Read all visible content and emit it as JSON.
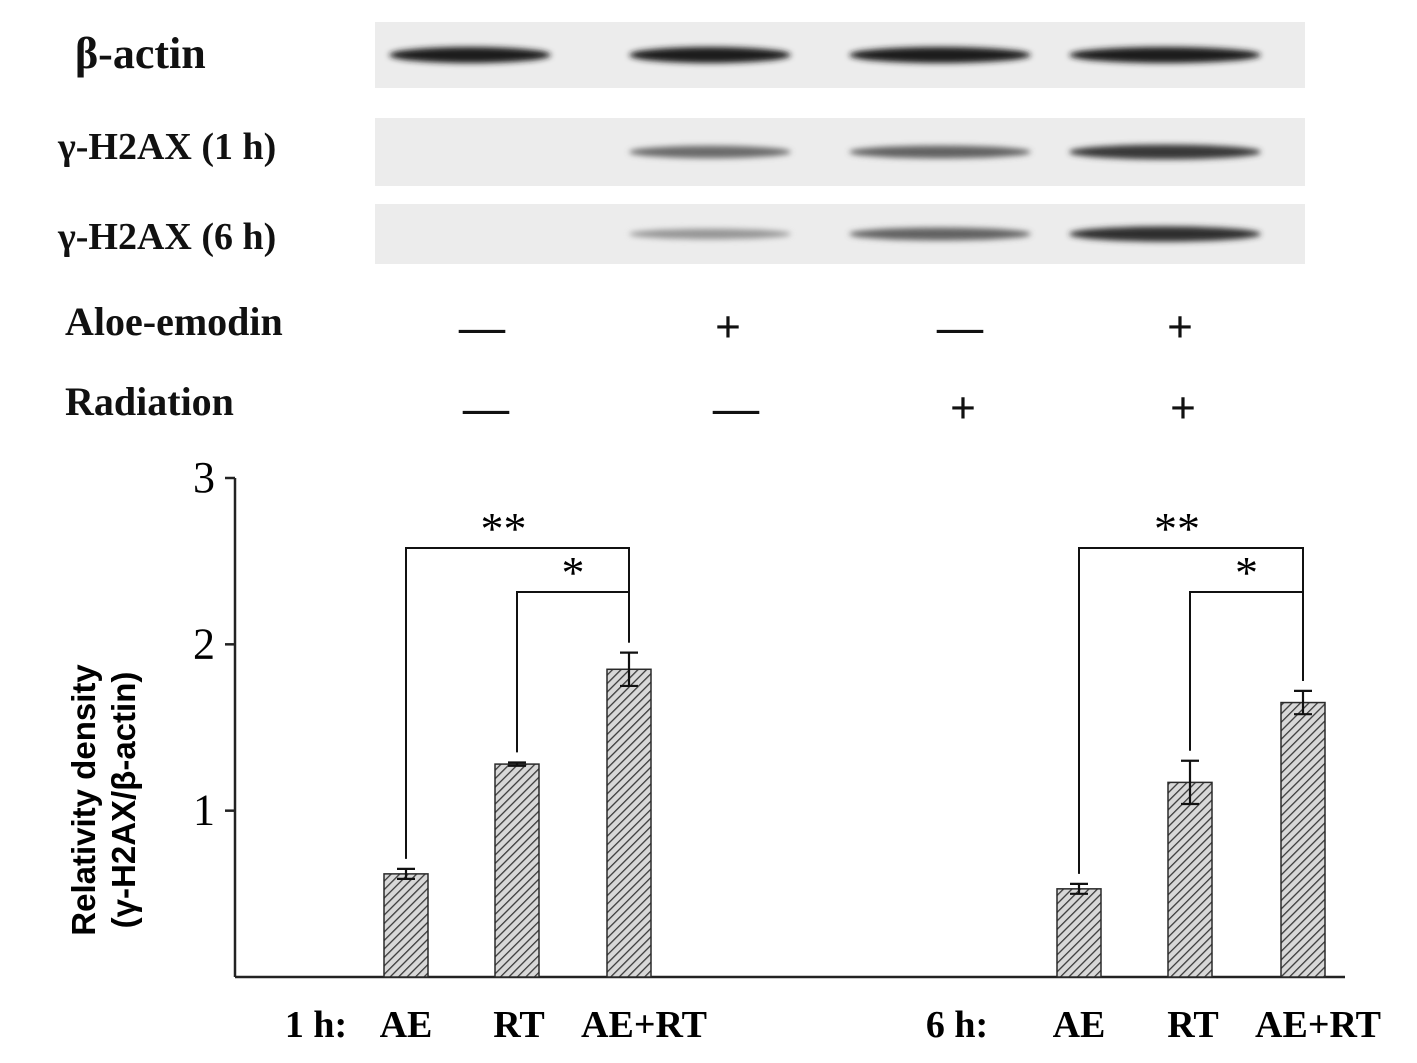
{
  "blot": {
    "rows": [
      {
        "label": "β-actin",
        "bands": [
          1.0,
          1.0,
          1.0,
          1.0
        ]
      },
      {
        "label": "γ-H2AX (1 h)",
        "bands": [
          0.0,
          0.55,
          0.6,
          0.85
        ]
      },
      {
        "label": "γ-H2AX (6 h)",
        "bands": [
          0.0,
          0.3,
          0.6,
          0.9
        ]
      }
    ],
    "conditions": [
      {
        "label": "Aloe-emodin",
        "signs": [
          "—",
          "+",
          "—",
          "+"
        ]
      },
      {
        "label": "Radiation",
        "signs": [
          "—",
          "—",
          "+",
          "+"
        ]
      }
    ]
  },
  "chart_data": {
    "type": "bar",
    "ylabel_line1": "Relativity density",
    "ylabel_line2": "(γ-H2AX/β-actin)",
    "ylim": [
      0,
      3
    ],
    "yticks": [
      "1",
      "2",
      "3"
    ],
    "groups": [
      {
        "name": "1 h:",
        "categories": [
          "AE",
          "RT",
          "AE+RT"
        ],
        "values": [
          0.62,
          1.28,
          1.85
        ],
        "errors": [
          0.03,
          0.01,
          0.1
        ],
        "significance": [
          {
            "from": 0,
            "to": 2,
            "label": "**"
          },
          {
            "from": 1,
            "to": 2,
            "label": "*"
          }
        ]
      },
      {
        "name": "6 h:",
        "categories": [
          "AE",
          "RT",
          "AE+RT"
        ],
        "values": [
          0.53,
          1.17,
          1.65
        ],
        "errors": [
          0.03,
          0.13,
          0.07
        ],
        "significance": [
          {
            "from": 0,
            "to": 2,
            "label": "**"
          },
          {
            "from": 1,
            "to": 2,
            "label": "*"
          }
        ]
      }
    ],
    "grid": false,
    "legend": "none"
  }
}
